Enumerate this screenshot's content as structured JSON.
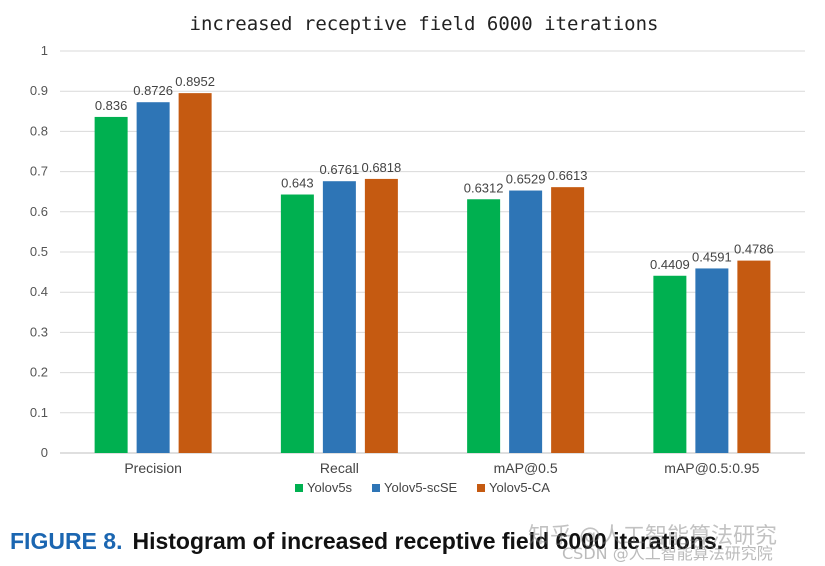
{
  "chart_data": {
    "type": "bar",
    "title": "increased receptive field 6000 iterations",
    "categories": [
      "Precision",
      "Recall",
      "mAP@0.5",
      "mAP@0.5:0.95"
    ],
    "series": [
      {
        "name": "Yolov5s",
        "color": "#00b050",
        "values": [
          0.836,
          0.643,
          0.6312,
          0.4409
        ]
      },
      {
        "name": "Yolov5-scSE",
        "color": "#2e75b6",
        "values": [
          0.8726,
          0.6761,
          0.6529,
          0.4591
        ]
      },
      {
        "name": "Yolov5-CA",
        "color": "#c55a11",
        "values": [
          0.8952,
          0.6818,
          0.6613,
          0.4786
        ]
      }
    ],
    "data_labels": [
      [
        "0.836",
        "0.643",
        "0.6312",
        "0.4409"
      ],
      [
        "0.8726",
        "0.6761",
        "0.6529",
        "0.4591"
      ],
      [
        "0.8952",
        "0.6818",
        "0.6613",
        "0.4786"
      ]
    ],
    "y_ticks": [
      "0",
      "0.1",
      "0.2",
      "0.3",
      "0.4",
      "0.5",
      "0.6",
      "0.7",
      "0.8",
      "0.9",
      "1"
    ],
    "ylim": [
      0,
      1
    ],
    "grid": true,
    "legend_position": "bottom"
  },
  "caption": {
    "label": "FIGURE 8.",
    "text": "Histogram of increased receptive field 6000 iterations."
  },
  "watermark": {
    "line1": "知乎 @人工智能算法研究",
    "line2": "CSDN @人工智能算法研究院"
  }
}
